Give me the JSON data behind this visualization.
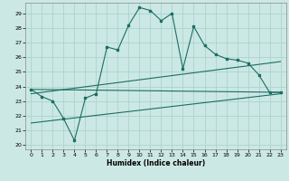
{
  "xlabel": "Humidex (Indice chaleur)",
  "background_color": "#cce8e4",
  "grid_color": "#aad4cc",
  "line_color": "#1a6e64",
  "xlim": [
    -0.5,
    23.5
  ],
  "ylim": [
    19.7,
    29.7
  ],
  "yticks": [
    20,
    21,
    22,
    23,
    24,
    25,
    26,
    27,
    28,
    29
  ],
  "xticks": [
    0,
    1,
    2,
    3,
    4,
    5,
    6,
    7,
    8,
    9,
    10,
    11,
    12,
    13,
    14,
    15,
    16,
    17,
    18,
    19,
    20,
    21,
    22,
    23
  ],
  "series1": [
    23.8,
    23.3,
    23.0,
    21.8,
    20.3,
    23.2,
    23.5,
    26.7,
    26.5,
    28.2,
    29.4,
    29.2,
    28.5,
    29.0,
    25.2,
    28.1,
    26.8,
    26.2,
    25.9,
    25.8,
    25.6,
    24.8,
    23.6,
    23.6
  ],
  "line2": [
    [
      0,
      23.8
    ],
    [
      23,
      23.6
    ]
  ],
  "line3": [
    [
      0,
      23.5
    ],
    [
      23,
      25.7
    ]
  ],
  "line4": [
    [
      0,
      21.5
    ],
    [
      23,
      23.5
    ]
  ]
}
